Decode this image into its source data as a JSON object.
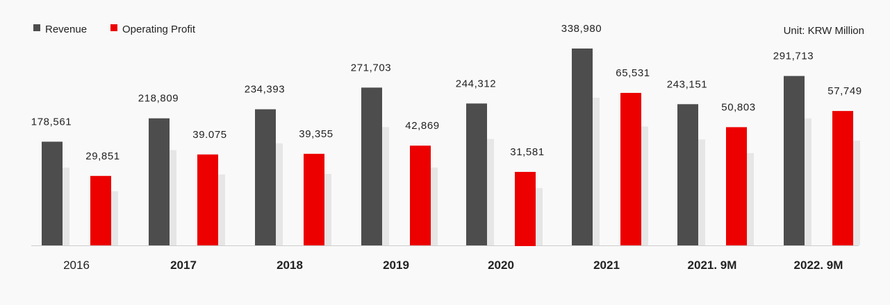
{
  "chart_data": {
    "type": "bar",
    "title": "",
    "xlabel": "",
    "ylabel": "",
    "unit": "Unit: KRW Million",
    "categories": [
      "2016",
      "2017",
      "2018",
      "2019",
      "2020",
      "2021",
      "2021. 9M",
      "2022. 9M"
    ],
    "series": [
      {
        "name": "Revenue",
        "color": "#4d4d4d",
        "values": [
          178561,
          218809,
          234393,
          271703,
          244312,
          338980,
          243151,
          291713
        ],
        "labels": [
          "178,561",
          "218,809",
          "234,393",
          "271,703",
          "244,312",
          "338,980",
          "243,151",
          "291,713"
        ]
      },
      {
        "name": "Operating Profit",
        "color": "#ec0000",
        "values": [
          29851,
          39075,
          39355,
          42869,
          31581,
          65531,
          50803,
          57749
        ],
        "labels": [
          "29,851",
          "39.075",
          "39,355",
          "42,869",
          "31,581",
          "65,531",
          "50,803",
          "57,749"
        ]
      }
    ],
    "legend": [
      "Revenue",
      "Operating Profit"
    ],
    "legend_position": "top-left",
    "grid": false,
    "shadow_color": "#e6e6e6",
    "axis_color": "#cccccc"
  }
}
